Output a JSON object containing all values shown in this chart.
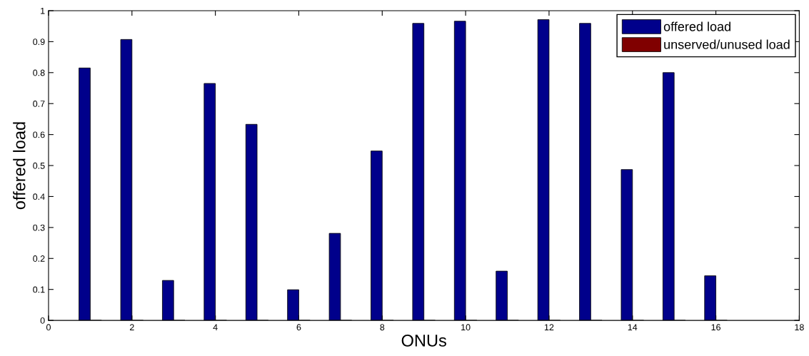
{
  "chart_data": {
    "type": "bar",
    "xlabel": "ONUs",
    "ylabel": "offered load",
    "x": [
      1,
      2,
      3,
      4,
      5,
      6,
      7,
      8,
      9,
      10,
      11,
      12,
      13,
      14,
      15,
      16
    ],
    "series": [
      {
        "name": "offered load",
        "color": "#00008b",
        "values": [
          0.815,
          0.907,
          0.129,
          0.765,
          0.633,
          0.099,
          0.281,
          0.547,
          0.959,
          0.966,
          0.159,
          0.971,
          0.959,
          0.487,
          0.8,
          0.144
        ]
      },
      {
        "name": "unserved/unused load",
        "color": "#800000",
        "values": [
          0,
          0,
          0,
          0,
          0,
          0,
          0,
          0,
          0,
          0,
          0,
          0,
          0,
          0,
          0,
          0
        ]
      }
    ],
    "xlim": [
      0,
      18
    ],
    "xticks": [
      0,
      2,
      4,
      6,
      8,
      10,
      12,
      14,
      16,
      18
    ],
    "ylim": [
      0,
      1
    ],
    "yticks": [
      0,
      0.1,
      0.2,
      0.3,
      0.4,
      0.5,
      0.6,
      0.7,
      0.8,
      0.9,
      1
    ],
    "grid": false,
    "legend": "top right"
  }
}
